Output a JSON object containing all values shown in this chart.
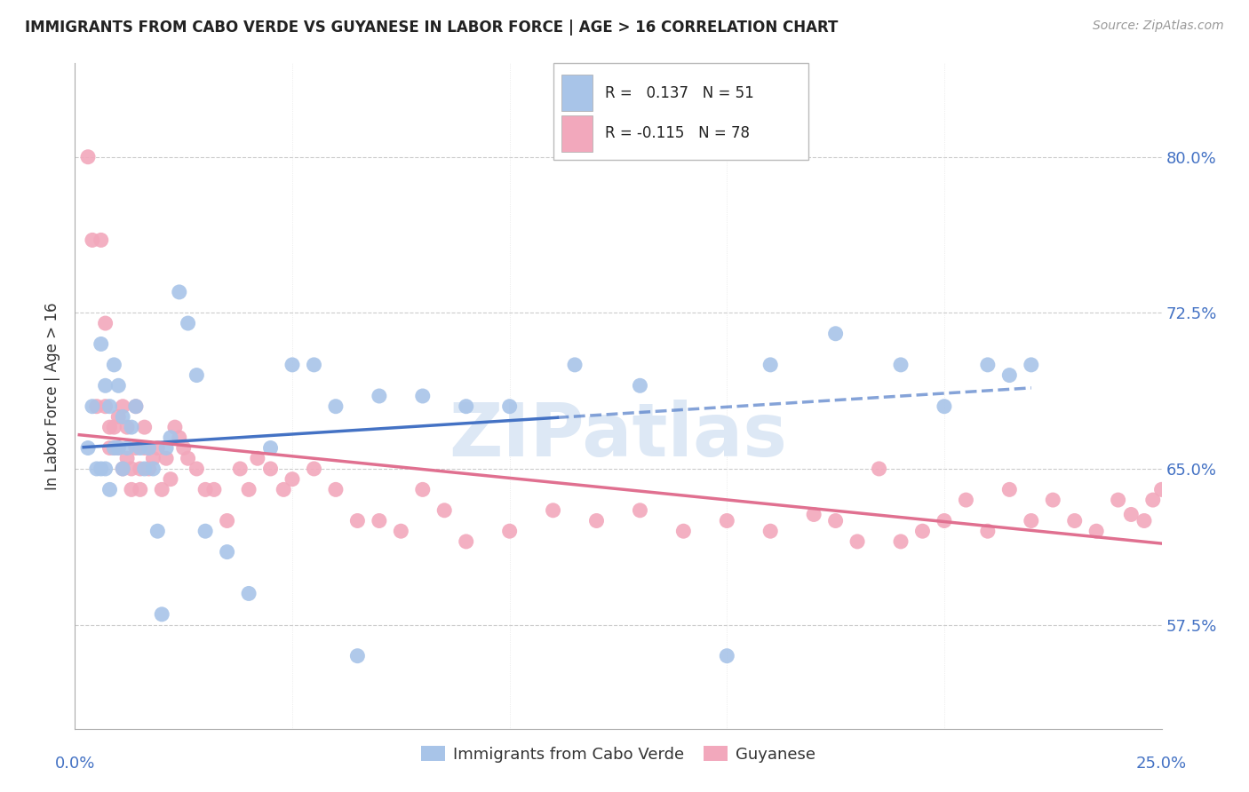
{
  "title": "IMMIGRANTS FROM CABO VERDE VS GUYANESE IN LABOR FORCE | AGE > 16 CORRELATION CHART",
  "source": "Source: ZipAtlas.com",
  "ylabel": "In Labor Force | Age > 16",
  "legend_blue_R": " 0.137",
  "legend_blue_N": "51",
  "legend_pink_R": "-0.115",
  "legend_pink_N": "78",
  "legend_blue_label": "Immigrants from Cabo Verde",
  "legend_pink_label": "Guyanese",
  "blue_color": "#a8c4e8",
  "pink_color": "#f2a8bc",
  "blue_line_color": "#4472c4",
  "pink_line_color": "#e07090",
  "ytick_values": [
    0.575,
    0.65,
    0.725,
    0.8
  ],
  "ytick_labels": [
    "57.5%",
    "65.0%",
    "72.5%",
    "80.0%"
  ],
  "xlim": [
    0.0,
    0.25
  ],
  "ylim": [
    0.525,
    0.845
  ],
  "cabo_verde_x": [
    0.003,
    0.004,
    0.005,
    0.006,
    0.006,
    0.007,
    0.007,
    0.008,
    0.008,
    0.009,
    0.009,
    0.01,
    0.01,
    0.011,
    0.011,
    0.012,
    0.013,
    0.014,
    0.015,
    0.016,
    0.017,
    0.018,
    0.019,
    0.02,
    0.021,
    0.022,
    0.024,
    0.026,
    0.028,
    0.03,
    0.035,
    0.04,
    0.045,
    0.05,
    0.055,
    0.06,
    0.065,
    0.07,
    0.08,
    0.09,
    0.1,
    0.115,
    0.13,
    0.15,
    0.16,
    0.175,
    0.19,
    0.2,
    0.21,
    0.215,
    0.22
  ],
  "cabo_verde_y": [
    0.66,
    0.68,
    0.65,
    0.71,
    0.65,
    0.65,
    0.69,
    0.64,
    0.68,
    0.66,
    0.7,
    0.69,
    0.66,
    0.675,
    0.65,
    0.66,
    0.67,
    0.68,
    0.66,
    0.65,
    0.66,
    0.65,
    0.62,
    0.58,
    0.66,
    0.665,
    0.735,
    0.72,
    0.695,
    0.62,
    0.61,
    0.59,
    0.66,
    0.7,
    0.7,
    0.68,
    0.56,
    0.685,
    0.685,
    0.68,
    0.68,
    0.7,
    0.69,
    0.56,
    0.7,
    0.715,
    0.7,
    0.68,
    0.7,
    0.695,
    0.7
  ],
  "guyanese_x": [
    0.003,
    0.004,
    0.005,
    0.006,
    0.007,
    0.007,
    0.008,
    0.008,
    0.009,
    0.009,
    0.01,
    0.01,
    0.011,
    0.011,
    0.012,
    0.012,
    0.013,
    0.013,
    0.014,
    0.014,
    0.015,
    0.015,
    0.016,
    0.016,
    0.017,
    0.018,
    0.019,
    0.02,
    0.021,
    0.022,
    0.023,
    0.024,
    0.025,
    0.026,
    0.028,
    0.03,
    0.032,
    0.035,
    0.038,
    0.04,
    0.042,
    0.045,
    0.048,
    0.05,
    0.055,
    0.06,
    0.065,
    0.07,
    0.075,
    0.08,
    0.085,
    0.09,
    0.1,
    0.11,
    0.12,
    0.13,
    0.14,
    0.15,
    0.16,
    0.17,
    0.175,
    0.18,
    0.185,
    0.19,
    0.195,
    0.2,
    0.205,
    0.21,
    0.215,
    0.22,
    0.225,
    0.23,
    0.235,
    0.24,
    0.243,
    0.246,
    0.248,
    0.25
  ],
  "guyanese_y": [
    0.8,
    0.76,
    0.68,
    0.76,
    0.72,
    0.68,
    0.66,
    0.67,
    0.66,
    0.67,
    0.675,
    0.66,
    0.68,
    0.65,
    0.655,
    0.67,
    0.64,
    0.65,
    0.66,
    0.68,
    0.64,
    0.65,
    0.67,
    0.66,
    0.65,
    0.655,
    0.66,
    0.64,
    0.655,
    0.645,
    0.67,
    0.665,
    0.66,
    0.655,
    0.65,
    0.64,
    0.64,
    0.625,
    0.65,
    0.64,
    0.655,
    0.65,
    0.64,
    0.645,
    0.65,
    0.64,
    0.625,
    0.625,
    0.62,
    0.64,
    0.63,
    0.615,
    0.62,
    0.63,
    0.625,
    0.63,
    0.62,
    0.625,
    0.62,
    0.628,
    0.625,
    0.615,
    0.65,
    0.615,
    0.62,
    0.625,
    0.635,
    0.62,
    0.64,
    0.625,
    0.635,
    0.625,
    0.62,
    0.635,
    0.628,
    0.625,
    0.635,
    0.64
  ]
}
